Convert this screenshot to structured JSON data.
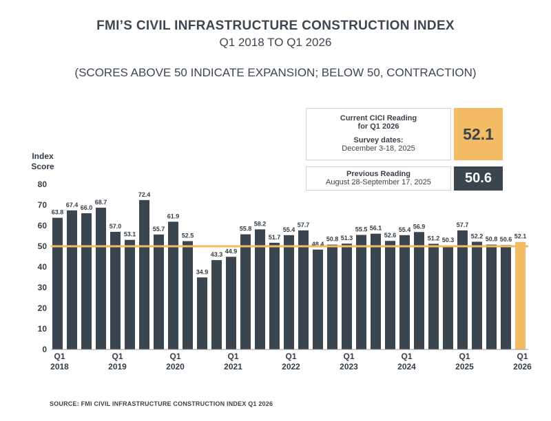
{
  "header": {
    "title": "FMI’S CIVIL INFRASTRUCTURE CONSTRUCTION INDEX",
    "subtitle": "Q1 2018 TO Q1 2026",
    "note": "(SCORES ABOVE 50 INDICATE EXPANSION; BELOW 50, CONTRACTION)"
  },
  "current_reading": {
    "label_line1": "Current CICI Reading",
    "label_line2": "for Q1 2026",
    "survey_label": "Survey dates:",
    "survey_dates": "December 3-18, 2025",
    "value": "52.1"
  },
  "previous_reading": {
    "label": "Previous Reading",
    "dates": "August 28-September 17, 2025",
    "value": "50.6"
  },
  "source": "SOURCE: FMI CIVIL INFRASTRUCTURE CONSTRUCTION INDEX Q1 2026",
  "colors": {
    "bar": "#3a4550",
    "highlight": "#f3bb64",
    "threshold_line": "#f3bb64"
  },
  "chart_data": {
    "type": "bar",
    "ylabel": "Index Score",
    "ylim": [
      0,
      80
    ],
    "yticks": [
      0,
      10,
      20,
      30,
      40,
      50,
      60,
      70,
      80
    ],
    "threshold": 50,
    "grid": false,
    "categories": [
      "Q1 2018",
      "Q2 2018",
      "Q3 2018",
      "Q4 2018",
      "Q1 2019",
      "Q2 2019",
      "Q3 2019",
      "Q4 2019",
      "Q1 2020",
      "Q2 2020",
      "Q3 2020",
      "Q4 2020",
      "Q1 2021",
      "Q2 2021",
      "Q3 2021",
      "Q4 2021",
      "Q1 2022",
      "Q2 2022",
      "Q3 2022",
      "Q4 2022",
      "Q1 2023",
      "Q2 2023",
      "Q3 2023",
      "Q4 2023",
      "Q1 2024",
      "Q2 2024",
      "Q3 2024",
      "Q4 2024",
      "Q1 2025",
      "Q2 2025",
      "Q3 2025",
      "Q4 2025",
      "Q1 2026"
    ],
    "values": [
      63.8,
      67.4,
      66.0,
      68.7,
      57.0,
      53.1,
      72.4,
      55.7,
      61.9,
      52.5,
      34.9,
      43.3,
      44.9,
      55.8,
      58.2,
      51.7,
      55.4,
      57.7,
      48.4,
      50.8,
      51.3,
      55.5,
      56.1,
      52.6,
      55.4,
      56.9,
      51.2,
      50.3,
      57.7,
      52.2,
      50.8,
      50.6,
      52.1
    ],
    "x_tick_labels": [
      {
        "index": 0,
        "line1": "Q1",
        "line2": "2018"
      },
      {
        "index": 4,
        "line1": "Q1",
        "line2": "2019"
      },
      {
        "index": 8,
        "line1": "Q1",
        "line2": "2020"
      },
      {
        "index": 12,
        "line1": "Q1",
        "line2": "2021"
      },
      {
        "index": 16,
        "line1": "Q1",
        "line2": "2022"
      },
      {
        "index": 20,
        "line1": "Q1",
        "line2": "2023"
      },
      {
        "index": 24,
        "line1": "Q1",
        "line2": "2024"
      },
      {
        "index": 28,
        "line1": "Q1",
        "line2": "2025"
      },
      {
        "index": 32,
        "line1": "Q1",
        "line2": "2026"
      }
    ],
    "highlight_index": 32
  }
}
